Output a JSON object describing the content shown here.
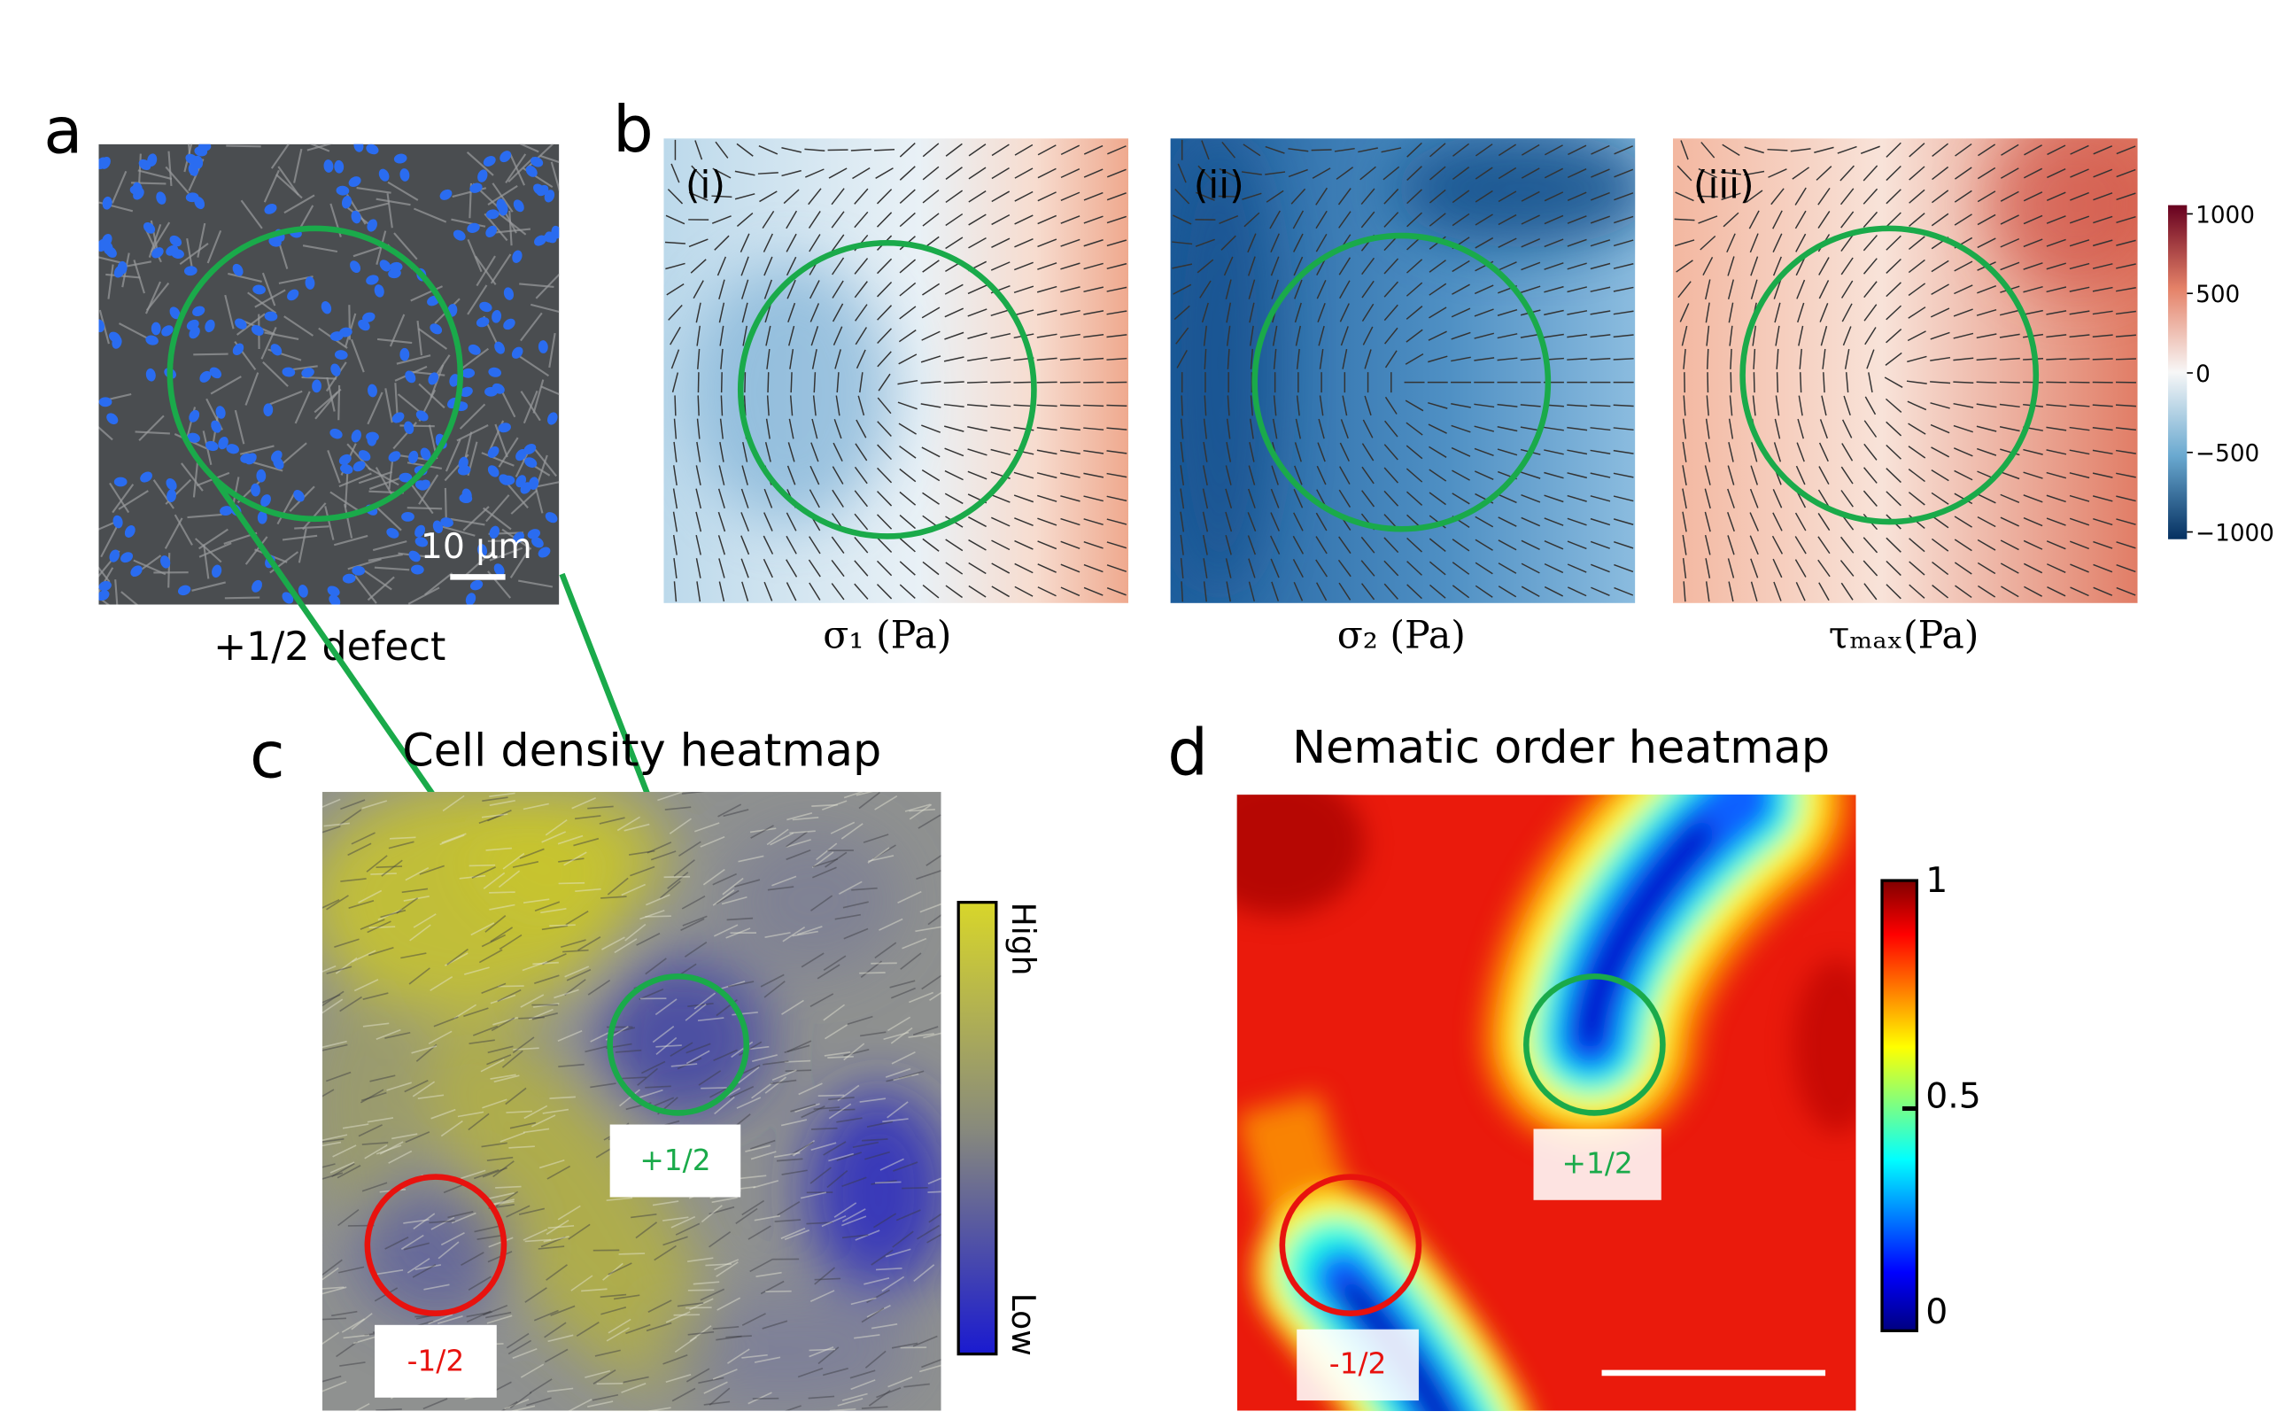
{
  "panels": {
    "a": {
      "label": "a",
      "scale_bar": "10 μm",
      "caption": "+1/2 defect"
    },
    "b": {
      "label": "b",
      "subpanels": [
        {
          "tag": "(i)",
          "axis_label": "σ₁ (Pa)"
        },
        {
          "tag": "(ii)",
          "axis_label": "σ₂ (Pa)"
        },
        {
          "tag": "(iii)",
          "axis_label": "τₘₐₓ(Pa)"
        }
      ],
      "colorbar_ticks": [
        "1000",
        "500",
        "0",
        "−500",
        "−1000"
      ]
    },
    "c": {
      "label": "c",
      "title": "Cell density heatmap",
      "colorbar_top": "High",
      "colorbar_bottom": "Low",
      "defects": [
        "+1/2",
        "-1/2"
      ]
    },
    "d": {
      "label": "d",
      "title": "Nematic order heatmap",
      "colorbar_ticks": [
        "1",
        "0.5",
        "0"
      ],
      "defects": [
        "+1/2",
        "-1/2"
      ]
    }
  }
}
